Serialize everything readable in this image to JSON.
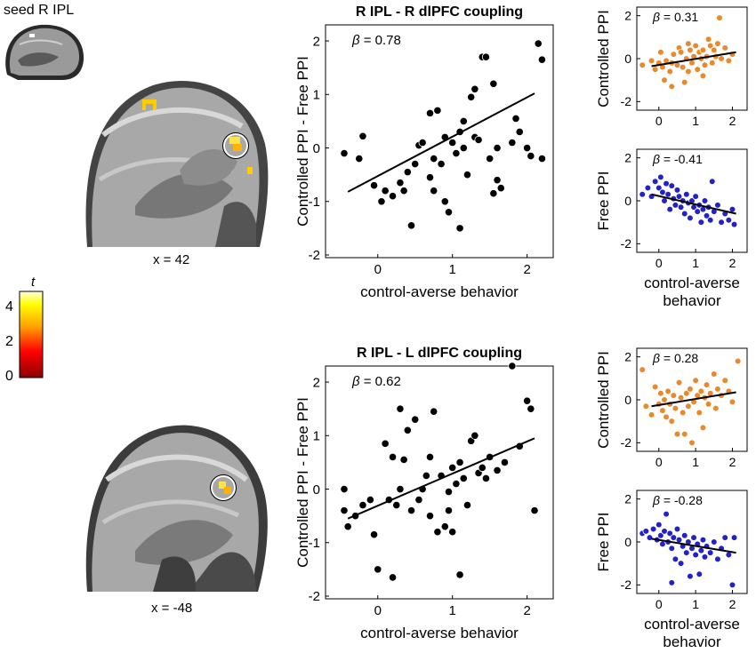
{
  "brain": {
    "seed_label": "seed R IPL",
    "top_slice_label": "x = 42",
    "bottom_slice_label": "x = -48",
    "colorbar": {
      "title": "t",
      "ticks": [
        "4",
        "2",
        "0"
      ],
      "colors": [
        "#8b0000",
        "#ff0000",
        "#ffa500",
        "#ffff00",
        "#ffffe0"
      ]
    }
  },
  "chart_data": [
    {
      "id": "top_main",
      "type": "scatter",
      "title": "R IPL - R dlPFC coupling",
      "xlabel": "control-averse behavior",
      "ylabel": "Controlled PPI - Free PPI",
      "annotation_beta": "β",
      "annotation_value": "= 0.78",
      "xlim": [
        -0.7,
        2.35
      ],
      "ylim": [
        -2.05,
        2.3
      ],
      "xticks": [
        0,
        1,
        2
      ],
      "xtick_labels": [
        "0",
        "1",
        "2"
      ],
      "yticks": [
        -2,
        -1,
        0,
        1,
        2
      ],
      "ytick_labels": [
        "-2",
        "-1",
        "0",
        "1",
        "2"
      ],
      "color": "#000000",
      "fit": [
        [
          -0.4,
          -0.82
        ],
        [
          2.1,
          1.02
        ]
      ],
      "points": [
        [
          -0.45,
          -0.1
        ],
        [
          -0.2,
          0.22
        ],
        [
          -0.25,
          -0.2
        ],
        [
          -0.05,
          -0.7
        ],
        [
          0.05,
          -1.0
        ],
        [
          0.1,
          -0.8
        ],
        [
          0.2,
          -0.9
        ],
        [
          0.3,
          -0.65
        ],
        [
          0.35,
          -0.8
        ],
        [
          0.4,
          -0.45
        ],
        [
          0.45,
          -1.45
        ],
        [
          0.5,
          -0.3
        ],
        [
          0.55,
          0.05
        ],
        [
          0.6,
          0.1
        ],
        [
          0.7,
          -0.55
        ],
        [
          0.75,
          -0.2
        ],
        [
          0.75,
          -0.8
        ],
        [
          0.8,
          0.7
        ],
        [
          0.85,
          -0.3
        ],
        [
          0.9,
          0.2
        ],
        [
          0.9,
          -1.0
        ],
        [
          0.95,
          -1.2
        ],
        [
          1.0,
          0.1
        ],
        [
          1.05,
          -0.1
        ],
        [
          1.1,
          0.3
        ],
        [
          1.1,
          -1.5
        ],
        [
          1.15,
          0.0
        ],
        [
          1.2,
          -0.5
        ],
        [
          1.25,
          0.95
        ],
        [
          1.3,
          1.1
        ],
        [
          1.3,
          0.2
        ],
        [
          1.35,
          0.15
        ],
        [
          1.4,
          1.7
        ],
        [
          1.45,
          1.7
        ],
        [
          1.5,
          -0.2
        ],
        [
          1.55,
          1.2
        ],
        [
          1.6,
          0.0
        ],
        [
          1.6,
          -0.6
        ],
        [
          1.65,
          -0.75
        ],
        [
          1.8,
          0.1
        ],
        [
          1.85,
          0.55
        ],
        [
          1.9,
          0.3
        ],
        [
          2.0,
          0.0
        ],
        [
          2.05,
          -0.15
        ],
        [
          2.15,
          1.95
        ],
        [
          2.2,
          -0.2
        ],
        [
          2.2,
          1.65
        ],
        [
          1.15,
          0.5
        ],
        [
          0.7,
          0.65
        ],
        [
          1.55,
          -0.85
        ]
      ]
    },
    {
      "id": "top_controlled",
      "type": "scatter",
      "title": "",
      "xlabel": "",
      "ylabel": "Controlled PPI",
      "annotation_beta": "β",
      "annotation_value": "= 0.31",
      "xlim": [
        -0.6,
        2.4
      ],
      "ylim": [
        -2.4,
        2.4
      ],
      "xticks": [
        0,
        1,
        2
      ],
      "xtick_labels": [
        "0",
        "1",
        "2"
      ],
      "yticks": [
        -2,
        0,
        2
      ],
      "ytick_labels": [
        "-2",
        "0",
        "2"
      ],
      "color": "#e8892e",
      "fit": [
        [
          -0.2,
          -0.35
        ],
        [
          2.1,
          0.3
        ]
      ],
      "points": [
        [
          -0.45,
          -0.3
        ],
        [
          -0.2,
          -0.1
        ],
        [
          -0.1,
          -0.5
        ],
        [
          0.0,
          -0.2
        ],
        [
          0.05,
          0.3
        ],
        [
          0.1,
          -0.4
        ],
        [
          0.15,
          -1.0
        ],
        [
          0.2,
          -0.1
        ],
        [
          0.3,
          -0.6
        ],
        [
          0.35,
          -0.2
        ],
        [
          0.4,
          0.2
        ],
        [
          0.5,
          -0.3
        ],
        [
          0.55,
          0.5
        ],
        [
          0.6,
          0.3
        ],
        [
          0.65,
          -0.4
        ],
        [
          0.7,
          -1.1
        ],
        [
          0.75,
          0.0
        ],
        [
          0.8,
          -0.6
        ],
        [
          0.85,
          0.4
        ],
        [
          0.9,
          -0.2
        ],
        [
          0.95,
          0.1
        ],
        [
          1.0,
          0.6
        ],
        [
          1.05,
          -0.5
        ],
        [
          1.1,
          0.3
        ],
        [
          1.15,
          0.0
        ],
        [
          1.2,
          0.4
        ],
        [
          1.25,
          -0.3
        ],
        [
          1.3,
          0.1
        ],
        [
          1.35,
          0.9
        ],
        [
          1.4,
          0.6
        ],
        [
          1.45,
          -0.2
        ],
        [
          1.5,
          0.4
        ],
        [
          1.55,
          0.1
        ],
        [
          1.6,
          0.7
        ],
        [
          1.65,
          1.9
        ],
        [
          1.7,
          0.0
        ],
        [
          1.8,
          0.5
        ],
        [
          1.9,
          -0.1
        ],
        [
          2.0,
          0.2
        ],
        [
          0.35,
          -1.3
        ],
        [
          1.2,
          -0.8
        ],
        [
          0.8,
          0.7
        ]
      ]
    },
    {
      "id": "top_free",
      "type": "scatter",
      "title": "",
      "xlabel": "control-averse behavior",
      "ylabel": "Free PPI",
      "annotation_beta": "β",
      "annotation_value": "= -0.41",
      "xlim": [
        -0.6,
        2.4
      ],
      "ylim": [
        -2.4,
        2.4
      ],
      "xticks": [
        0,
        1,
        2
      ],
      "xtick_labels": [
        "0",
        "1",
        "2"
      ],
      "yticks": [
        -2,
        0,
        2
      ],
      "ytick_labels": [
        "-2",
        "0",
        "2"
      ],
      "color": "#2222cc",
      "fit": [
        [
          -0.2,
          0.3
        ],
        [
          2.1,
          -0.6
        ]
      ],
      "points": [
        [
          -0.45,
          0.3
        ],
        [
          -0.3,
          0.6
        ],
        [
          -0.2,
          0.2
        ],
        [
          -0.1,
          0.9
        ],
        [
          0.0,
          0.6
        ],
        [
          0.05,
          1.1
        ],
        [
          0.1,
          0.4
        ],
        [
          0.15,
          0.0
        ],
        [
          0.2,
          0.8
        ],
        [
          0.25,
          0.3
        ],
        [
          0.3,
          -0.4
        ],
        [
          0.35,
          0.7
        ],
        [
          0.4,
          0.1
        ],
        [
          0.45,
          -0.2
        ],
        [
          0.5,
          0.5
        ],
        [
          0.55,
          0.2
        ],
        [
          0.6,
          -0.3
        ],
        [
          0.65,
          0.0
        ],
        [
          0.7,
          -0.6
        ],
        [
          0.75,
          0.3
        ],
        [
          0.8,
          -0.1
        ],
        [
          0.85,
          -0.8
        ],
        [
          0.9,
          0.0
        ],
        [
          0.95,
          -0.3
        ],
        [
          1.0,
          0.2
        ],
        [
          1.05,
          -0.5
        ],
        [
          1.1,
          -0.2
        ],
        [
          1.15,
          -1.0
        ],
        [
          1.2,
          -0.4
        ],
        [
          1.25,
          0.0
        ],
        [
          1.3,
          -0.7
        ],
        [
          1.35,
          -0.3
        ],
        [
          1.4,
          -0.9
        ],
        [
          1.5,
          -0.5
        ],
        [
          1.6,
          -0.2
        ],
        [
          1.7,
          -1.0
        ],
        [
          1.8,
          -0.6
        ],
        [
          1.9,
          -0.9
        ],
        [
          2.0,
          -0.4
        ],
        [
          2.05,
          -1.1
        ],
        [
          1.45,
          0.9
        ]
      ]
    },
    {
      "id": "bottom_main",
      "type": "scatter",
      "title": "R IPL - L dlPFC coupling",
      "xlabel": "control-averse behavior",
      "ylabel": "Controlled PPI - Free PPI",
      "annotation_beta": "β",
      "annotation_value": "= 0.62",
      "xlim": [
        -0.7,
        2.35
      ],
      "ylim": [
        -2.05,
        2.3
      ],
      "xticks": [
        0,
        1,
        2
      ],
      "xtick_labels": [
        "0",
        "1",
        "2"
      ],
      "yticks": [
        -2,
        -1,
        0,
        1,
        2
      ],
      "ytick_labels": [
        "-2",
        "-1",
        "0",
        "1",
        "2"
      ],
      "color": "#000000",
      "fit": [
        [
          -0.4,
          -0.55
        ],
        [
          2.1,
          0.95
        ]
      ],
      "points": [
        [
          -0.45,
          0.0
        ],
        [
          -0.45,
          -0.4
        ],
        [
          -0.4,
          -0.7
        ],
        [
          -0.3,
          -0.5
        ],
        [
          -0.2,
          -0.3
        ],
        [
          -0.1,
          -0.2
        ],
        [
          -0.05,
          -0.85
        ],
        [
          0.0,
          -1.5
        ],
        [
          0.1,
          0.85
        ],
        [
          0.15,
          -0.2
        ],
        [
          0.2,
          -1.65
        ],
        [
          0.2,
          0.6
        ],
        [
          0.25,
          -0.3
        ],
        [
          0.3,
          1.5
        ],
        [
          0.3,
          0.0
        ],
        [
          0.35,
          0.55
        ],
        [
          0.4,
          1.1
        ],
        [
          0.45,
          -0.4
        ],
        [
          0.5,
          1.3
        ],
        [
          0.55,
          -0.2
        ],
        [
          0.6,
          0.0
        ],
        [
          0.65,
          0.25
        ],
        [
          0.7,
          0.6
        ],
        [
          0.7,
          -0.5
        ],
        [
          0.75,
          1.45
        ],
        [
          0.8,
          -0.8
        ],
        [
          0.85,
          0.25
        ],
        [
          0.9,
          -0.7
        ],
        [
          0.95,
          -0.4
        ],
        [
          1.0,
          -0.8
        ],
        [
          1.0,
          0.4
        ],
        [
          1.05,
          0.1
        ],
        [
          1.1,
          0.5
        ],
        [
          1.1,
          -1.6
        ],
        [
          1.15,
          0.2
        ],
        [
          1.2,
          -0.3
        ],
        [
          1.25,
          0.9
        ],
        [
          1.3,
          1.0
        ],
        [
          1.35,
          0.3
        ],
        [
          1.4,
          0.4
        ],
        [
          1.45,
          0.2
        ],
        [
          1.5,
          0.6
        ],
        [
          1.6,
          0.35
        ],
        [
          1.7,
          0.5
        ],
        [
          1.8,
          2.3
        ],
        [
          1.9,
          0.8
        ],
        [
          2.0,
          1.65
        ],
        [
          2.05,
          1.5
        ],
        [
          2.1,
          -0.4
        ],
        [
          0.95,
          -0.05
        ]
      ]
    },
    {
      "id": "bottom_controlled",
      "type": "scatter",
      "title": "",
      "xlabel": "",
      "ylabel": "Controlled PPI",
      "annotation_beta": "β",
      "annotation_value": "= 0.28",
      "xlim": [
        -0.6,
        2.4
      ],
      "ylim": [
        -2.4,
        2.4
      ],
      "xticks": [
        0,
        1,
        2
      ],
      "xtick_labels": [
        "0",
        "1",
        "2"
      ],
      "yticks": [
        -2,
        0,
        2
      ],
      "ytick_labels": [
        "-2",
        "0",
        "2"
      ],
      "color": "#e8892e",
      "fit": [
        [
          -0.2,
          -0.3
        ],
        [
          2.1,
          0.35
        ]
      ],
      "points": [
        [
          -0.45,
          1.4
        ],
        [
          -0.35,
          -0.3
        ],
        [
          -0.2,
          -0.7
        ],
        [
          -0.1,
          0.6
        ],
        [
          0.0,
          -0.2
        ],
        [
          0.05,
          0.3
        ],
        [
          0.1,
          -0.5
        ],
        [
          0.15,
          0.0
        ],
        [
          0.2,
          -0.8
        ],
        [
          0.25,
          0.4
        ],
        [
          0.3,
          -0.2
        ],
        [
          0.35,
          -1.0
        ],
        [
          0.4,
          0.2
        ],
        [
          0.45,
          -0.4
        ],
        [
          0.5,
          -1.6
        ],
        [
          0.55,
          0.8
        ],
        [
          0.6,
          0.1
        ],
        [
          0.65,
          -0.6
        ],
        [
          0.7,
          -1.6
        ],
        [
          0.75,
          0.3
        ],
        [
          0.8,
          -0.3
        ],
        [
          0.85,
          0.5
        ],
        [
          0.9,
          -2.0
        ],
        [
          0.95,
          -0.1
        ],
        [
          1.0,
          0.9
        ],
        [
          1.05,
          0.2
        ],
        [
          1.1,
          -0.6
        ],
        [
          1.15,
          0.4
        ],
        [
          1.2,
          -1.3
        ],
        [
          1.25,
          0.1
        ],
        [
          1.3,
          0.7
        ],
        [
          1.35,
          -0.2
        ],
        [
          1.4,
          0.3
        ],
        [
          1.5,
          1.2
        ],
        [
          1.55,
          -0.4
        ],
        [
          1.6,
          0.5
        ],
        [
          1.7,
          0.2
        ],
        [
          1.8,
          0.9
        ],
        [
          1.9,
          0.4
        ],
        [
          2.0,
          -0.1
        ],
        [
          2.15,
          1.8
        ]
      ]
    },
    {
      "id": "bottom_free",
      "type": "scatter",
      "title": "",
      "xlabel": "control-averse behavior",
      "ylabel": "Free PPI",
      "annotation_beta": "β",
      "annotation_value": "= -0.28",
      "xlim": [
        -0.6,
        2.4
      ],
      "ylim": [
        -2.4,
        2.4
      ],
      "xticks": [
        0,
        1,
        2
      ],
      "xtick_labels": [
        "0",
        "1",
        "2"
      ],
      "yticks": [
        -2,
        0,
        2
      ],
      "ytick_labels": [
        "-2",
        "0",
        "2"
      ],
      "color": "#2222cc",
      "fit": [
        [
          -0.2,
          0.15
        ],
        [
          2.1,
          -0.5
        ]
      ],
      "points": [
        [
          -0.45,
          0.4
        ],
        [
          -0.35,
          0.5
        ],
        [
          -0.25,
          0.2
        ],
        [
          -0.15,
          0.6
        ],
        [
          -0.05,
          0.1
        ],
        [
          0.0,
          0.8
        ],
        [
          0.05,
          0.3
        ],
        [
          0.1,
          -0.1
        ],
        [
          0.15,
          0.5
        ],
        [
          0.2,
          1.3
        ],
        [
          0.25,
          0.0
        ],
        [
          0.3,
          0.4
        ],
        [
          0.35,
          -0.3
        ],
        [
          0.4,
          0.2
        ],
        [
          0.45,
          -0.8
        ],
        [
          0.5,
          0.6
        ],
        [
          0.55,
          0.1
        ],
        [
          0.6,
          -1.0
        ],
        [
          0.65,
          -0.2
        ],
        [
          0.7,
          0.3
        ],
        [
          0.75,
          -0.5
        ],
        [
          0.8,
          0.0
        ],
        [
          0.85,
          -1.6
        ],
        [
          0.9,
          -0.3
        ],
        [
          0.95,
          0.2
        ],
        [
          1.0,
          -0.6
        ],
        [
          1.05,
          -0.1
        ],
        [
          1.1,
          -1.5
        ],
        [
          1.15,
          -0.4
        ],
        [
          1.2,
          0.1
        ],
        [
          1.25,
          -0.7
        ],
        [
          1.3,
          -0.2
        ],
        [
          1.4,
          -0.5
        ],
        [
          1.5,
          0.0
        ],
        [
          1.6,
          -0.8
        ],
        [
          1.7,
          -0.3
        ],
        [
          1.8,
          0.2
        ],
        [
          1.9,
          -0.6
        ],
        [
          2.0,
          -2.0
        ],
        [
          2.05,
          0.2
        ],
        [
          0.35,
          -1.9
        ]
      ]
    }
  ]
}
